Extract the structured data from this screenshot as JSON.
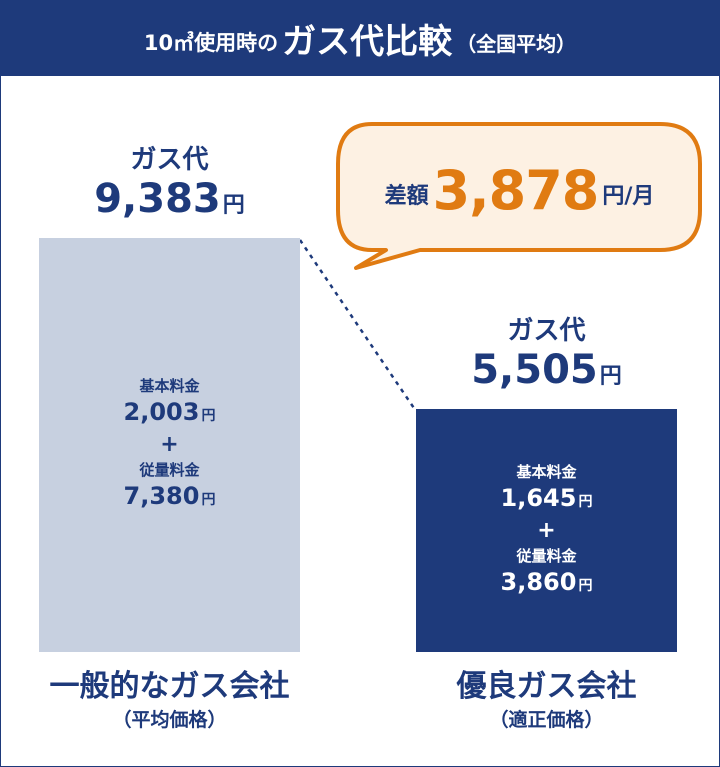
{
  "header": {
    "pre": "10㎥使用時の",
    "main": "ガス代比較",
    "post": "（全国平均）"
  },
  "bubble": {
    "label": "差額",
    "value": "3,878",
    "unit": "円/月"
  },
  "colors": {
    "navy": "#1e3a7b",
    "bar_light": "#c7d0e0",
    "accent_orange": "#e07b12",
    "bubble_fill": "#fdf1e3"
  },
  "chart_data": {
    "type": "bar",
    "categories": [
      "一般的なガス会社",
      "優良ガス会社"
    ],
    "values": [
      9383,
      5505
    ],
    "unit": "円",
    "breakdown": [
      {
        "basic_label": "基本料金",
        "basic": 2003,
        "usage_label": "従量料金",
        "usage": 7380
      },
      {
        "basic_label": "基本料金",
        "basic": 1645,
        "usage_label": "従量料金",
        "usage": 3860
      }
    ],
    "difference": 3878
  },
  "columns": [
    {
      "top_label": "ガス代",
      "total": "9,383",
      "unit": "円",
      "basic_label": "基本料金",
      "basic": "2,003",
      "plus": "+",
      "usage_label": "従量料金",
      "usage": "7,380",
      "company": "一般的なガス会社",
      "note": "（平均価格）"
    },
    {
      "top_label": "ガス代",
      "total": "5,505",
      "unit": "円",
      "basic_label": "基本料金",
      "basic": "1,645",
      "plus": "+",
      "usage_label": "従量料金",
      "usage": "3,860",
      "company": "優良ガス会社",
      "note": "（適正価格）"
    }
  ]
}
